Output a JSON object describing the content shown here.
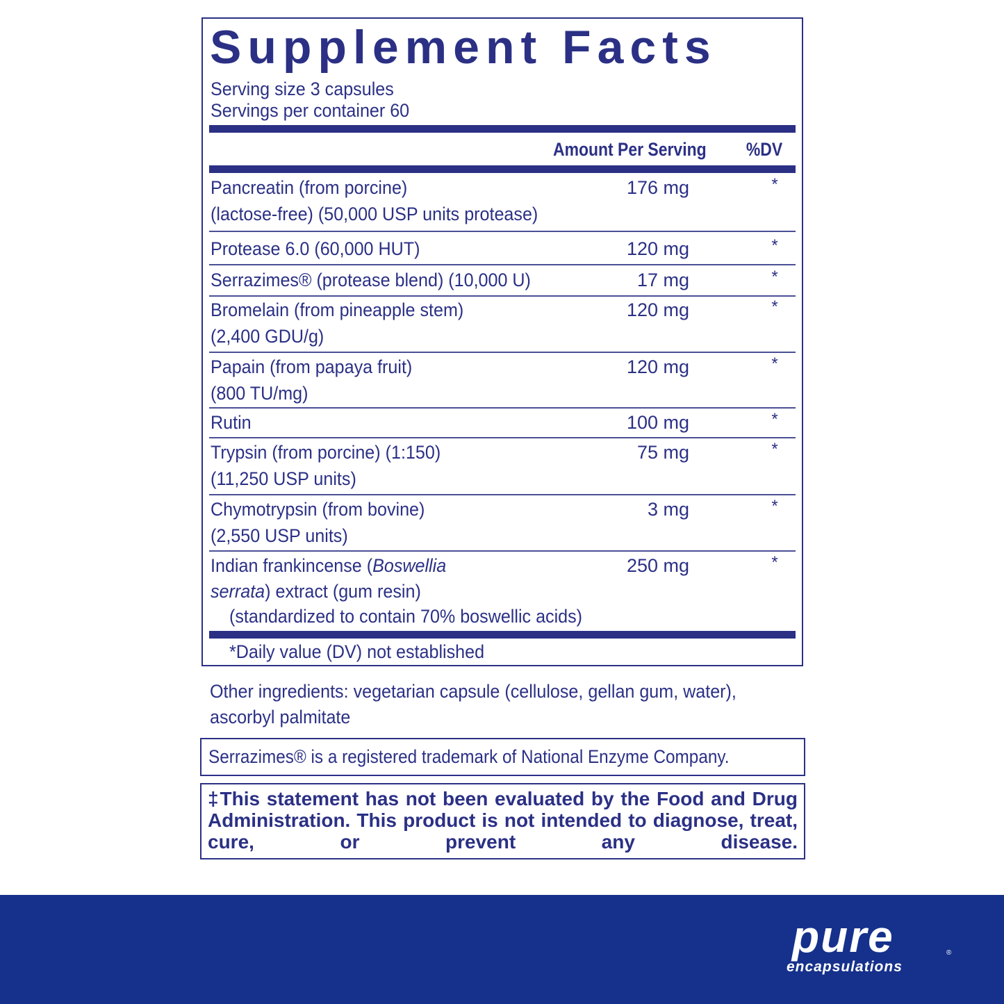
{
  "panel": {
    "title": "Supplement Facts",
    "serving_size": "Serving size  3 capsules",
    "servings_per_container": "Servings per container  60",
    "header_amount": "Amount Per Serving",
    "header_dv": "%DV",
    "rows": [
      {
        "lines": [
          "Pancreatin (from porcine)",
          "(lactose-free) (50,000 USP units protease)"
        ],
        "amount": "176 mg",
        "dv": "*"
      },
      {
        "lines": [
          "Protease 6.0 (60,000 HUT)"
        ],
        "amount": "120 mg",
        "dv": "*"
      },
      {
        "lines": [
          "Serrazimes® (protease blend) (10,000 U)"
        ],
        "amount": "17 mg",
        "dv": "*"
      },
      {
        "lines": [
          "Bromelain (from pineapple stem)",
          "(2,400 GDU/g)"
        ],
        "amount": "120 mg",
        "dv": "*"
      },
      {
        "lines": [
          "Papain (from papaya fruit)",
          "(800 TU/mg)"
        ],
        "amount": "120 mg",
        "dv": "*"
      },
      {
        "lines": [
          "Rutin"
        ],
        "amount": "100 mg",
        "dv": "*"
      },
      {
        "lines": [
          "Trypsin (from porcine) (1:150)",
          "(11,250 USP units)"
        ],
        "amount": "75 mg",
        "dv": "*"
      },
      {
        "lines": [
          "Chymotrypsin (from bovine)",
          "(2,550 USP units)"
        ],
        "amount": "3 mg",
        "dv": "*"
      },
      {
        "lines": [
          "Indian frankincense (",
          "Boswellia",
          "serrata",
          ") extract (gum resin)",
          "(standardized to contain 70% boswellic acids)"
        ],
        "amount": "250 mg",
        "dv": "*"
      }
    ],
    "footnote": "*Daily value (DV) not established"
  },
  "other_ingredients": [
    "Other ingredients: vegetarian capsule (cellulose, gellan gum, water),",
    "ascorbyl palmitate"
  ],
  "trademark": "Serrazimes® is a registered trademark of National Enzyme Company.",
  "disclaimer": "‡This statement has not been evaluated by the Food and Drug Administration. This product is not intended to diagnose, treat, cure, or prevent any disease.",
  "brand": {
    "name": "pure",
    "tagline": "encapsulations",
    "mark": "®",
    "color": "#16318c"
  }
}
